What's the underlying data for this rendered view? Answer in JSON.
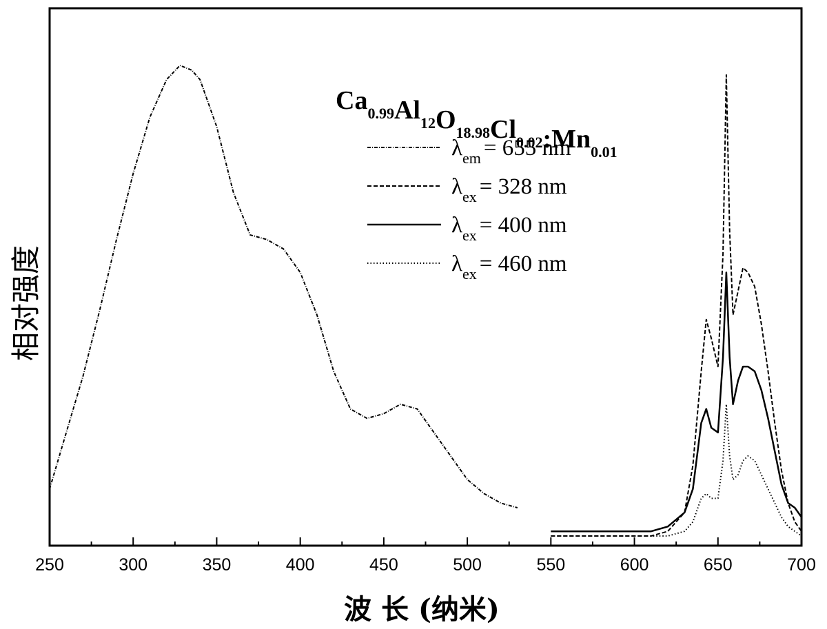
{
  "chart_data": {
    "type": "line",
    "xlabel": "波 长 (纳米)",
    "ylabel": "相对强度",
    "xlim": [
      250,
      700
    ],
    "ylim": [
      0,
      1.0
    ],
    "x_ticks": [
      "250",
      "300",
      "350",
      "400",
      "450",
      "500",
      "550",
      "600",
      "650",
      "700"
    ],
    "y_ticks_shown": false,
    "grid": false,
    "legend": {
      "placement": "top-center",
      "title_parts": [
        {
          "text": "Ca",
          "sub": "0.99"
        },
        {
          "text": "Al",
          "sub": "12"
        },
        {
          "text": "O",
          "sub": "18.98"
        },
        {
          "text": "Cl",
          "sub": "0.02"
        },
        {
          "text": ":Mn",
          "sub": "0.01"
        }
      ],
      "entries": [
        {
          "symbol": "λ",
          "sub": "em",
          "text": "= 655 nm",
          "style": "dash-dot"
        },
        {
          "symbol": "λ",
          "sub": "ex",
          "text": "= 328 nm",
          "style": "dashed"
        },
        {
          "symbol": "λ",
          "sub": "ex",
          "text": "= 400 nm",
          "style": "solid"
        },
        {
          "symbol": "λ",
          "sub": "ex",
          "text": "= 460 nm",
          "style": "dotted"
        }
      ]
    },
    "series": [
      {
        "style": "dash-dot",
        "x": [
          250,
          260,
          270,
          280,
          290,
          300,
          310,
          320,
          328,
          335,
          340,
          350,
          360,
          370,
          380,
          390,
          400,
          410,
          420,
          430,
          440,
          450,
          460,
          470,
          480,
          490,
          500,
          510,
          520,
          530
        ],
        "y": [
          0.1,
          0.22,
          0.34,
          0.48,
          0.63,
          0.77,
          0.89,
          0.97,
          1.0,
          0.99,
          0.97,
          0.87,
          0.73,
          0.64,
          0.63,
          0.61,
          0.56,
          0.47,
          0.35,
          0.27,
          0.25,
          0.26,
          0.28,
          0.27,
          0.22,
          0.17,
          0.12,
          0.09,
          0.07,
          0.06
        ]
      },
      {
        "style": "dashed",
        "x": [
          550,
          580,
          610,
          620,
          630,
          635,
          640,
          643,
          646,
          650,
          653,
          655,
          657,
          659,
          662,
          665,
          668,
          672,
          676,
          680,
          684,
          688,
          692,
          696,
          700
        ],
        "y": [
          0.0,
          0.0,
          0.0,
          0.01,
          0.05,
          0.15,
          0.35,
          0.46,
          0.42,
          0.36,
          0.6,
          0.98,
          0.65,
          0.47,
          0.52,
          0.57,
          0.56,
          0.53,
          0.45,
          0.35,
          0.24,
          0.14,
          0.07,
          0.03,
          0.01
        ]
      },
      {
        "style": "solid",
        "x": [
          550,
          580,
          610,
          620,
          630,
          635,
          640,
          643,
          646,
          650,
          653,
          655,
          657,
          659,
          662,
          665,
          668,
          672,
          676,
          680,
          684,
          688,
          692,
          696,
          700
        ],
        "y": [
          0.01,
          0.01,
          0.01,
          0.02,
          0.05,
          0.1,
          0.24,
          0.27,
          0.23,
          0.22,
          0.38,
          0.56,
          0.38,
          0.28,
          0.33,
          0.36,
          0.36,
          0.35,
          0.31,
          0.25,
          0.18,
          0.11,
          0.07,
          0.06,
          0.04
        ]
      },
      {
        "style": "dotted",
        "x": [
          550,
          580,
          610,
          620,
          630,
          635,
          640,
          643,
          646,
          650,
          653,
          655,
          657,
          659,
          662,
          665,
          668,
          672,
          676,
          680,
          684,
          688,
          692,
          696,
          700
        ],
        "y": [
          0.0,
          0.0,
          0.0,
          0.0,
          0.01,
          0.03,
          0.08,
          0.09,
          0.08,
          0.08,
          0.16,
          0.28,
          0.17,
          0.12,
          0.13,
          0.16,
          0.17,
          0.16,
          0.13,
          0.1,
          0.07,
          0.04,
          0.02,
          0.01,
          0.0
        ]
      }
    ]
  }
}
